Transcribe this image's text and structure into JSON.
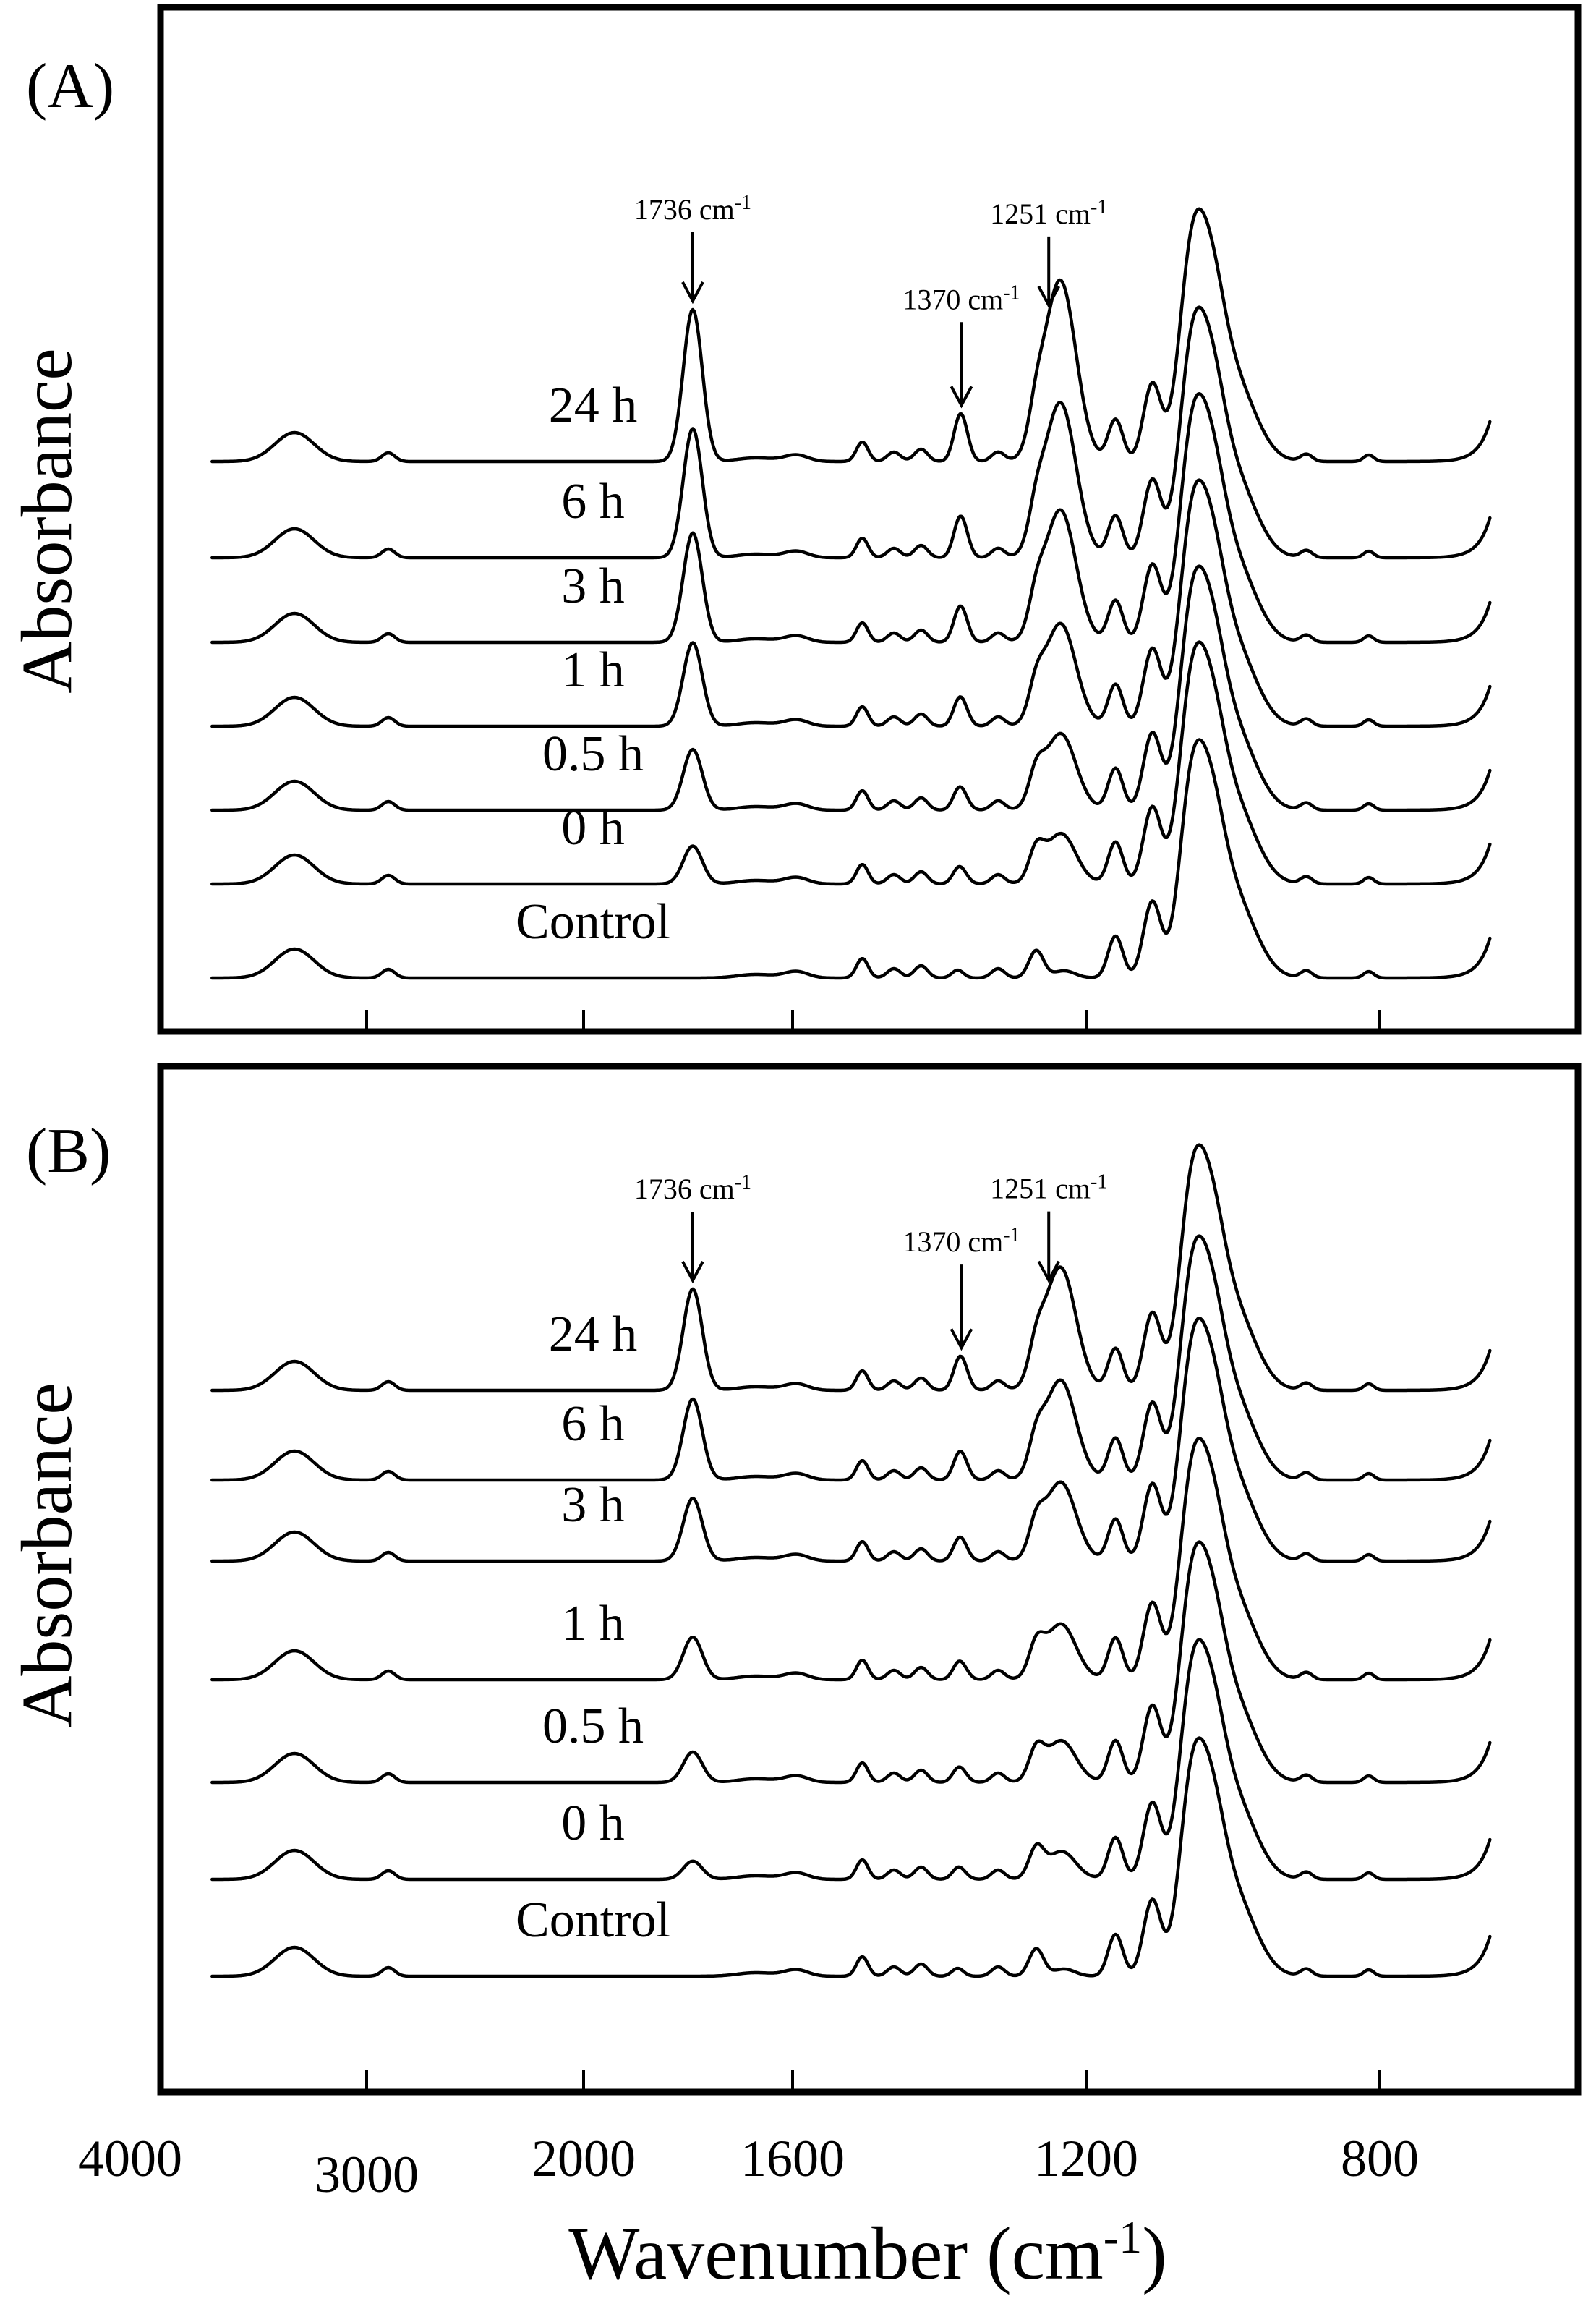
{
  "chart_data": [
    {
      "type": "line",
      "panel_label": "(A)",
      "ylabel": "Absorbance",
      "xlabel": "Wavenumber (cm-1)",
      "xlabel_base": "Wavenumber (cm",
      "xlabel_sup": "-1",
      "xlabel_close": ")",
      "x_axis": "broken (4000-1800 compressed), reversed",
      "x_ticks": [
        "4000",
        "3000",
        "2000",
        "1600",
        "1200",
        "800"
      ],
      "y_units": "arbitrary (stacked, offset)",
      "annotations": [
        {
          "label": "1736 cm-1",
          "text": "1736 cm",
          "sup": "-1",
          "wavenumber": 1736
        },
        {
          "label": "1370 cm-1",
          "text": "1370 cm",
          "sup": "-1",
          "wavenumber": 1370
        },
        {
          "label": "1251 cm-1",
          "text": "1251 cm",
          "sup": "-1",
          "wavenumber": 1251
        }
      ],
      "series": [
        {
          "name": "24 h",
          "scale": 1.0
        },
        {
          "name": "6 h",
          "scale": 0.85
        },
        {
          "name": "3 h",
          "scale": 0.72
        },
        {
          "name": "1 h",
          "scale": 0.55
        },
        {
          "name": "0.5 h",
          "scale": 0.4
        },
        {
          "name": "0 h",
          "scale": 0.25
        },
        {
          "name": "Control",
          "scale": 0.0
        }
      ]
    },
    {
      "type": "line",
      "panel_label": "(B)",
      "ylabel": "Absorbance",
      "xlabel": "Wavenumber (cm-1)",
      "x_axis": "broken (4000-1800 compressed), reversed",
      "x_ticks": [
        "4000",
        "3000",
        "2000",
        "1600",
        "1200",
        "800"
      ],
      "y_units": "arbitrary (stacked, offset)",
      "annotations": [
        {
          "label": "1736 cm-1",
          "text": "1736 cm",
          "sup": "-1",
          "wavenumber": 1736
        },
        {
          "label": "1370 cm-1",
          "text": "1370 cm",
          "sup": "-1",
          "wavenumber": 1370
        },
        {
          "label": "1251 cm-1",
          "text": "1251 cm",
          "sup": "-1",
          "wavenumber": 1251
        }
      ],
      "series": [
        {
          "name": "24 h",
          "scale": 1.0
        },
        {
          "name": "6 h",
          "scale": 0.8
        },
        {
          "name": "3 h",
          "scale": 0.62
        },
        {
          "name": "1 h",
          "scale": 0.42
        },
        {
          "name": "0.5 h",
          "scale": 0.3
        },
        {
          "name": "0 h",
          "scale": 0.18
        },
        {
          "name": "Control",
          "scale": 0.0
        }
      ]
    }
  ]
}
